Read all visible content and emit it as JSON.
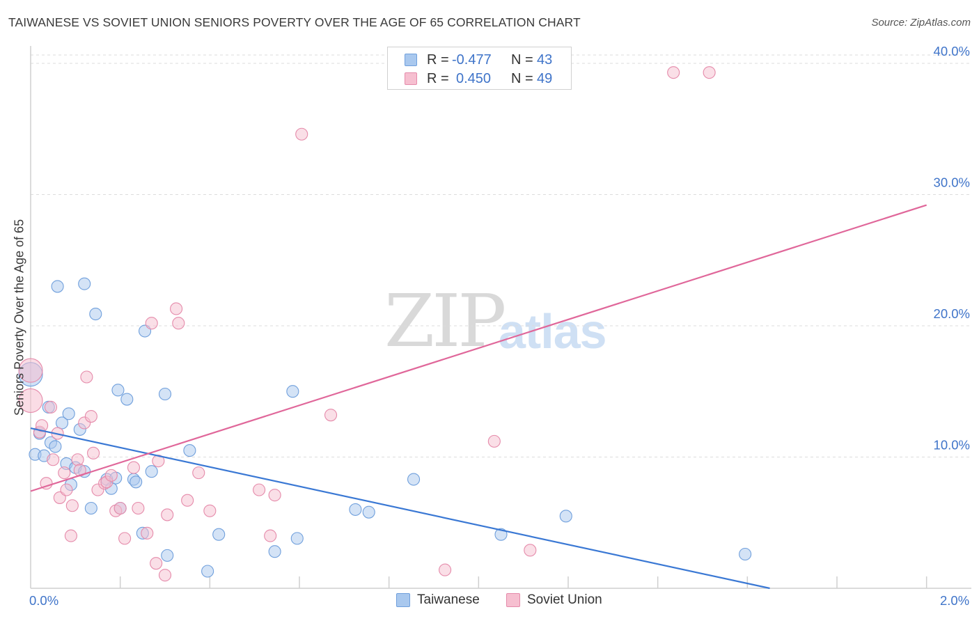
{
  "header": {
    "title": "TAIWANESE VS SOVIET UNION SENIORS POVERTY OVER THE AGE OF 65 CORRELATION CHART",
    "source": "Source: ZipAtlas.com"
  },
  "watermark": {
    "zip": "ZIP",
    "atlas": "atlas"
  },
  "legend_top": {
    "rows": [
      {
        "r_label": "R =",
        "r_value": "-0.477",
        "n_label": "N =",
        "n_value": "43"
      },
      {
        "r_label": "R =",
        "r_value": "0.450",
        "n_label": "N =",
        "n_value": "49"
      }
    ]
  },
  "legend_bottom": {
    "items": [
      "Taiwanese",
      "Soviet Union"
    ]
  },
  "colors": {
    "blue_fill": "#a9c8ee",
    "blue_stroke": "#6f9fdc",
    "blue_line": "#3a78d4",
    "pink_fill": "#f6bfd0",
    "pink_stroke": "#e58aaa",
    "pink_line": "#e0679a",
    "tick_label": "#3f74c9",
    "grid": "#dcdcdc"
  },
  "chart_data": {
    "type": "scatter",
    "title": "TAIWANESE VS SOVIET UNION SENIORS POVERTY OVER THE AGE OF 65 CORRELATION CHART",
    "xlabel": "",
    "ylabel": "Seniors Poverty Over the Age of 65",
    "xlim": [
      0,
      2.1
    ],
    "ylim": [
      0,
      40.9
    ],
    "x_tick_labels": [
      {
        "value": 0,
        "label": "0.0%"
      },
      {
        "value": 2.0,
        "label": "2.0%"
      }
    ],
    "y_ticks": [
      {
        "value": 10,
        "label": "10.0%"
      },
      {
        "value": 20,
        "label": "20.0%"
      },
      {
        "value": 30,
        "label": "30.0%"
      },
      {
        "value": 40,
        "label": "40.0%"
      }
    ],
    "series": [
      {
        "name": "Taiwanese",
        "R": -0.477,
        "N": 43,
        "trend": {
          "x0": 0.0,
          "y0": 12.2,
          "x1": 1.65,
          "y1": 0.0
        },
        "points": [
          {
            "x": 0.0,
            "y": 16.3,
            "big": true
          },
          {
            "x": 0.01,
            "y": 10.2
          },
          {
            "x": 0.02,
            "y": 11.8
          },
          {
            "x": 0.03,
            "y": 10.1
          },
          {
            "x": 0.04,
            "y": 13.8
          },
          {
            "x": 0.045,
            "y": 11.1
          },
          {
            "x": 0.055,
            "y": 10.8
          },
          {
            "x": 0.06,
            "y": 23.0
          },
          {
            "x": 0.07,
            "y": 12.6
          },
          {
            "x": 0.08,
            "y": 9.5
          },
          {
            "x": 0.085,
            "y": 13.3
          },
          {
            "x": 0.09,
            "y": 7.9
          },
          {
            "x": 0.1,
            "y": 9.2
          },
          {
            "x": 0.11,
            "y": 12.1
          },
          {
            "x": 0.12,
            "y": 8.9
          },
          {
            "x": 0.12,
            "y": 23.2
          },
          {
            "x": 0.135,
            "y": 6.1
          },
          {
            "x": 0.145,
            "y": 20.9
          },
          {
            "x": 0.17,
            "y": 8.3
          },
          {
            "x": 0.18,
            "y": 7.6
          },
          {
            "x": 0.19,
            "y": 8.4
          },
          {
            "x": 0.195,
            "y": 15.1
          },
          {
            "x": 0.2,
            "y": 6.1
          },
          {
            "x": 0.215,
            "y": 14.4
          },
          {
            "x": 0.23,
            "y": 8.3
          },
          {
            "x": 0.235,
            "y": 8.1
          },
          {
            "x": 0.25,
            "y": 4.2
          },
          {
            "x": 0.255,
            "y": 19.6
          },
          {
            "x": 0.27,
            "y": 8.9
          },
          {
            "x": 0.3,
            "y": 14.8
          },
          {
            "x": 0.305,
            "y": 2.5
          },
          {
            "x": 0.355,
            "y": 10.5
          },
          {
            "x": 0.395,
            "y": 1.3
          },
          {
            "x": 0.42,
            "y": 4.1
          },
          {
            "x": 0.545,
            "y": 2.8
          },
          {
            "x": 0.585,
            "y": 15.0
          },
          {
            "x": 0.595,
            "y": 3.8
          },
          {
            "x": 0.725,
            "y": 6.0
          },
          {
            "x": 0.755,
            "y": 5.8
          },
          {
            "x": 0.855,
            "y": 8.3
          },
          {
            "x": 1.05,
            "y": 4.1
          },
          {
            "x": 1.195,
            "y": 5.5
          },
          {
            "x": 1.595,
            "y": 2.6
          }
        ]
      },
      {
        "name": "Soviet Union",
        "R": 0.45,
        "N": 49,
        "trend": {
          "x0": 0.0,
          "y0": 7.4,
          "x1": 2.0,
          "y1": 29.2
        },
        "points": [
          {
            "x": 0.0,
            "y": 14.3,
            "big": true
          },
          {
            "x": 0.0,
            "y": 16.6,
            "big": true
          },
          {
            "x": 0.02,
            "y": 11.9
          },
          {
            "x": 0.025,
            "y": 12.4
          },
          {
            "x": 0.035,
            "y": 8.0
          },
          {
            "x": 0.045,
            "y": 13.8
          },
          {
            "x": 0.05,
            "y": 9.8
          },
          {
            "x": 0.06,
            "y": 11.8
          },
          {
            "x": 0.065,
            "y": 6.9
          },
          {
            "x": 0.075,
            "y": 8.8
          },
          {
            "x": 0.08,
            "y": 7.5
          },
          {
            "x": 0.09,
            "y": 4.0
          },
          {
            "x": 0.093,
            "y": 6.3
          },
          {
            "x": 0.105,
            "y": 9.8
          },
          {
            "x": 0.11,
            "y": 9.0
          },
          {
            "x": 0.12,
            "y": 12.6
          },
          {
            "x": 0.125,
            "y": 16.1
          },
          {
            "x": 0.135,
            "y": 13.1
          },
          {
            "x": 0.14,
            "y": 10.3
          },
          {
            "x": 0.15,
            "y": 7.5
          },
          {
            "x": 0.165,
            "y": 8.0
          },
          {
            "x": 0.17,
            "y": 8.1
          },
          {
            "x": 0.18,
            "y": 8.6
          },
          {
            "x": 0.19,
            "y": 5.9
          },
          {
            "x": 0.2,
            "y": 6.1
          },
          {
            "x": 0.21,
            "y": 3.8
          },
          {
            "x": 0.23,
            "y": 9.2
          },
          {
            "x": 0.24,
            "y": 6.1
          },
          {
            "x": 0.26,
            "y": 4.2
          },
          {
            "x": 0.27,
            "y": 20.2
          },
          {
            "x": 0.28,
            "y": 1.9
          },
          {
            "x": 0.285,
            "y": 9.7
          },
          {
            "x": 0.3,
            "y": 1.0
          },
          {
            "x": 0.305,
            "y": 5.6
          },
          {
            "x": 0.325,
            "y": 21.3
          },
          {
            "x": 0.33,
            "y": 20.2
          },
          {
            "x": 0.35,
            "y": 6.7
          },
          {
            "x": 0.375,
            "y": 8.8
          },
          {
            "x": 0.4,
            "y": 5.9
          },
          {
            "x": 0.51,
            "y": 7.5
          },
          {
            "x": 0.535,
            "y": 4.0
          },
          {
            "x": 0.545,
            "y": 7.1
          },
          {
            "x": 0.605,
            "y": 34.6
          },
          {
            "x": 0.67,
            "y": 13.2
          },
          {
            "x": 0.925,
            "y": 1.4
          },
          {
            "x": 1.035,
            "y": 11.2
          },
          {
            "x": 1.115,
            "y": 2.9
          },
          {
            "x": 1.435,
            "y": 39.3
          },
          {
            "x": 1.515,
            "y": 39.3
          }
        ]
      }
    ]
  }
}
